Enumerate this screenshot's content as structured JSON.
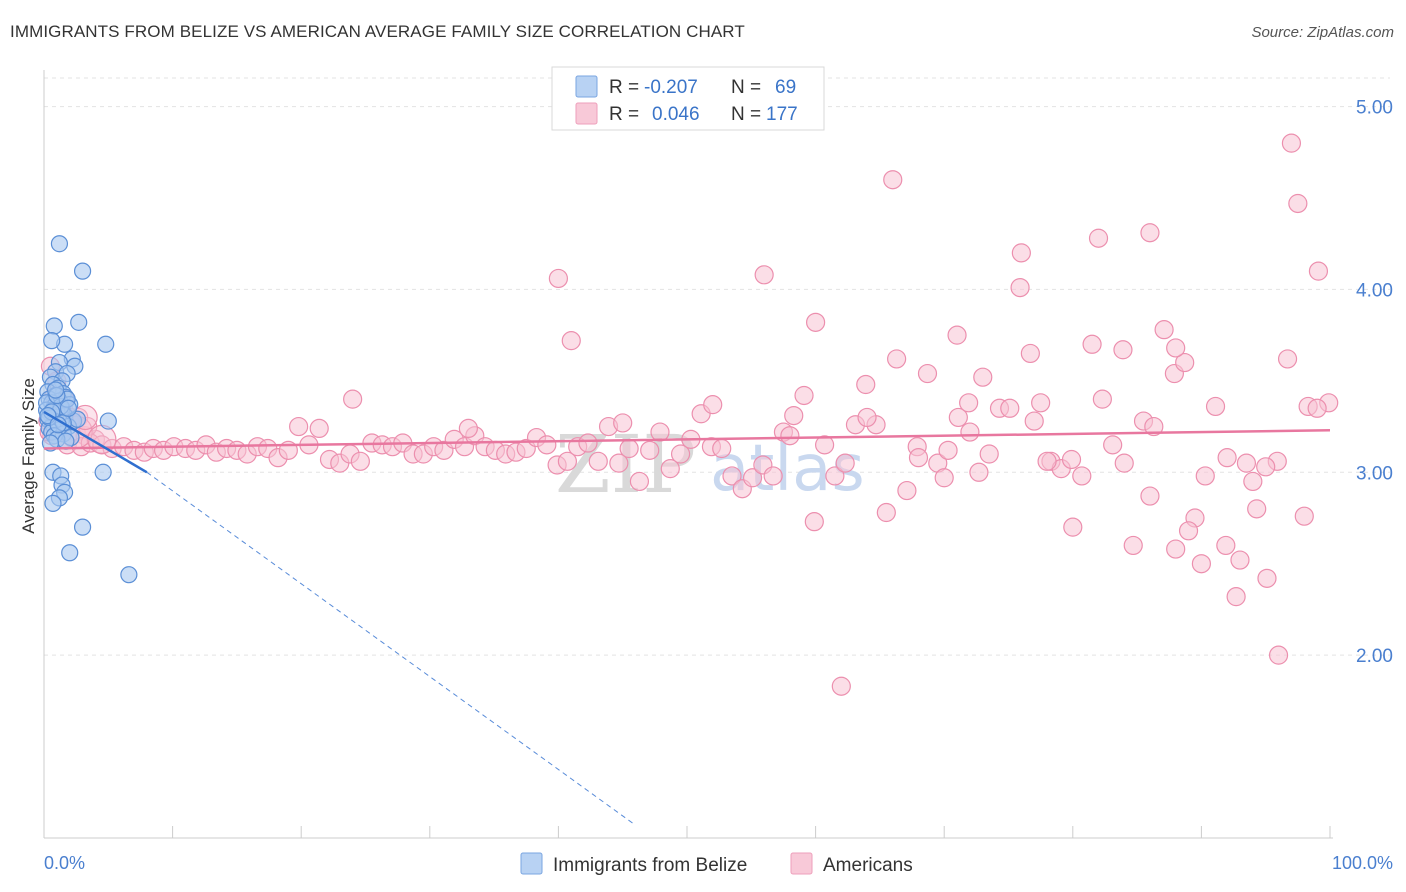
{
  "header": {
    "title": "IMMIGRANTS FROM BELIZE VS AMERICAN AVERAGE FAMILY SIZE CORRELATION CHART",
    "source": "Source: ZipAtlas.com"
  },
  "watermark": {
    "part1": "ZIP",
    "part2": "atlas"
  },
  "legend": {
    "rows": [
      {
        "r_label": "R =",
        "r_value": "-0.207",
        "n_label": "N =",
        "n_value": "69",
        "color": "#8fb5ea"
      },
      {
        "r_label": "R =",
        "r_value": "0.046",
        "n_label": "N =",
        "n_value": "177",
        "color": "#f5b0c8"
      }
    ]
  },
  "bottom_legend": [
    {
      "label": "Immigrants from Belize",
      "color": "#8fb5ea"
    },
    {
      "label": "Americans",
      "color": "#f5b0c8"
    }
  ],
  "colors": {
    "blue_fill": "#a9c8f0",
    "blue_stroke": "#5b8fd6",
    "blue_line": "#2f6fcf",
    "pink_fill": "#f7c3d4",
    "pink_stroke": "#ec8fae",
    "pink_line": "#e8779f",
    "grid": "#e3e3e3",
    "tick_label": "#4a7fcf"
  },
  "chart_data": {
    "type": "scatter",
    "title": "IMMIGRANTS FROM BELIZE VS AMERICAN AVERAGE FAMILY SIZE CORRELATION CHART",
    "xlabel": "",
    "ylabel": "Average Family Size",
    "xlim": [
      0,
      100
    ],
    "ylim": [
      1.0,
      5.2
    ],
    "x_tick_labels": [
      "0.0%",
      "100.0%"
    ],
    "y_ticks": [
      2.0,
      3.0,
      4.0,
      5.0
    ],
    "y_tick_labels": [
      "2.00",
      "3.00",
      "4.00",
      "5.00"
    ],
    "grid": true,
    "legend_position": "top-center",
    "series": [
      {
        "name": "Immigrants from Belize",
        "stats": {
          "R": -0.207,
          "N": 69
        },
        "trend": {
          "x": [
            0,
            8
          ],
          "y": [
            3.33,
            3.0
          ],
          "dashed_extension_to": [
            46,
            1.07
          ]
        },
        "points": [
          [
            1.2,
            4.25
          ],
          [
            3,
            4.1
          ],
          [
            0.8,
            3.8
          ],
          [
            2.7,
            3.82
          ],
          [
            1.6,
            3.7
          ],
          [
            4.8,
            3.7
          ],
          [
            0.6,
            3.72
          ],
          [
            2.2,
            3.62
          ],
          [
            1.2,
            3.6
          ],
          [
            2.4,
            3.58
          ],
          [
            0.9,
            3.55
          ],
          [
            1.8,
            3.54
          ],
          [
            0.5,
            3.52
          ],
          [
            1.4,
            3.5
          ],
          [
            0.7,
            3.48
          ],
          [
            1.1,
            3.46
          ],
          [
            0.3,
            3.44
          ],
          [
            1.5,
            3.43
          ],
          [
            0.9,
            3.42
          ],
          [
            1.7,
            3.41
          ],
          [
            0.4,
            3.4
          ],
          [
            1.2,
            3.39
          ],
          [
            0.6,
            3.38
          ],
          [
            2,
            3.37
          ],
          [
            0.8,
            3.36
          ],
          [
            1.4,
            3.35
          ],
          [
            0.2,
            3.34
          ],
          [
            1.0,
            3.33
          ],
          [
            0.5,
            3.32
          ],
          [
            1.6,
            3.31
          ],
          [
            0.9,
            3.3
          ],
          [
            0.3,
            3.29
          ],
          [
            2.3,
            3.28
          ],
          [
            5,
            3.28
          ],
          [
            1.3,
            3.27
          ],
          [
            0.7,
            3.26
          ],
          [
            1.9,
            3.25
          ],
          [
            0.4,
            3.24
          ],
          [
            1.1,
            3.23
          ],
          [
            0.6,
            3.22
          ],
          [
            1.5,
            3.21
          ],
          [
            0.8,
            3.2
          ],
          [
            2.1,
            3.19
          ],
          [
            1.0,
            3.18
          ],
          [
            1.7,
            3.17
          ],
          [
            0.5,
            3.16
          ],
          [
            0.7,
            3.34
          ],
          [
            1.3,
            3.36
          ],
          [
            0.4,
            3.3
          ],
          [
            1.8,
            3.4
          ],
          [
            2.6,
            3.29
          ],
          [
            0.2,
            3.38
          ],
          [
            1.0,
            3.42
          ],
          [
            0.6,
            3.33
          ],
          [
            1.5,
            3.27
          ],
          [
            0.9,
            3.45
          ],
          [
            0.7,
            3.0
          ],
          [
            1.3,
            2.98
          ],
          [
            4.6,
            3.0
          ],
          [
            1.4,
            2.93
          ],
          [
            1.6,
            2.89
          ],
          [
            1.2,
            2.86
          ],
          [
            0.7,
            2.83
          ],
          [
            3,
            2.7
          ],
          [
            2,
            2.56
          ],
          [
            6.6,
            2.44
          ],
          [
            0.3,
            3.31
          ],
          [
            1.1,
            3.26
          ],
          [
            1.9,
            3.35
          ]
        ]
      },
      {
        "name": "Americans",
        "stats": {
          "R": 0.046,
          "N": 177
        },
        "trend": {
          "x": [
            0,
            100
          ],
          "y": [
            3.13,
            3.23
          ]
        },
        "points": [
          [
            0.5,
            3.58
          ],
          [
            1,
            3.5
          ],
          [
            0.8,
            3.42
          ],
          [
            1.5,
            3.36
          ],
          [
            2.1,
            3.3
          ],
          [
            0.3,
            3.28
          ],
          [
            1.2,
            3.25
          ],
          [
            2.5,
            3.22
          ],
          [
            3.2,
            3.2
          ],
          [
            4,
            3.18
          ],
          [
            0.6,
            3.2
          ],
          [
            1.8,
            3.15
          ],
          [
            2.9,
            3.14
          ],
          [
            3.6,
            3.16
          ],
          [
            4.5,
            3.15
          ],
          [
            5.3,
            3.13
          ],
          [
            6.2,
            3.14
          ],
          [
            7,
            3.12
          ],
          [
            7.8,
            3.11
          ],
          [
            8.5,
            3.13
          ],
          [
            9.3,
            3.12
          ],
          [
            10.1,
            3.14
          ],
          [
            11,
            3.13
          ],
          [
            11.8,
            3.12
          ],
          [
            12.6,
            3.15
          ],
          [
            13.4,
            3.11
          ],
          [
            14.2,
            3.13
          ],
          [
            15,
            3.12
          ],
          [
            15.8,
            3.1
          ],
          [
            16.6,
            3.14
          ],
          [
            17.4,
            3.13
          ],
          [
            18.2,
            3.08
          ],
          [
            19,
            3.12
          ],
          [
            19.8,
            3.25
          ],
          [
            20.6,
            3.15
          ],
          [
            21.4,
            3.24
          ],
          [
            22.2,
            3.07
          ],
          [
            23,
            3.05
          ],
          [
            23.8,
            3.1
          ],
          [
            24.6,
            3.06
          ],
          [
            25.5,
            3.16
          ],
          [
            26.3,
            3.15
          ],
          [
            27.1,
            3.14
          ],
          [
            27.9,
            3.16
          ],
          [
            28.7,
            3.1
          ],
          [
            29.5,
            3.1
          ],
          [
            30.3,
            3.14
          ],
          [
            31.1,
            3.12
          ],
          [
            31.9,
            3.18
          ],
          [
            32.7,
            3.14
          ],
          [
            33.5,
            3.2
          ],
          [
            34.3,
            3.14
          ],
          [
            35.1,
            3.12
          ],
          [
            35.9,
            3.1
          ],
          [
            36.7,
            3.11
          ],
          [
            37.5,
            3.13
          ],
          [
            38.3,
            3.19
          ],
          [
            39.1,
            3.15
          ],
          [
            39.9,
            3.04
          ],
          [
            40.7,
            3.06
          ],
          [
            41.5,
            3.14
          ],
          [
            42.3,
            3.16
          ],
          [
            43.1,
            3.06
          ],
          [
            43.9,
            3.25
          ],
          [
            44.7,
            3.05
          ],
          [
            45.5,
            3.13
          ],
          [
            46.3,
            2.95
          ],
          [
            47.1,
            3.12
          ],
          [
            47.9,
            3.22
          ],
          [
            48.7,
            3.02
          ],
          [
            49.5,
            3.1
          ],
          [
            50.3,
            3.18
          ],
          [
            51.1,
            3.32
          ],
          [
            51.9,
            3.14
          ],
          [
            52.7,
            3.13
          ],
          [
            53.5,
            2.98
          ],
          [
            54.3,
            2.91
          ],
          [
            55.1,
            2.97
          ],
          [
            55.9,
            3.04
          ],
          [
            56.7,
            2.98
          ],
          [
            57.5,
            3.22
          ],
          [
            58.3,
            3.31
          ],
          [
            59.1,
            3.42
          ],
          [
            59.9,
            2.73
          ],
          [
            60.7,
            3.15
          ],
          [
            61.5,
            2.98
          ],
          [
            62.3,
            3.05
          ],
          [
            63.1,
            3.26
          ],
          [
            63.9,
            3.48
          ],
          [
            64.7,
            3.26
          ],
          [
            65.5,
            2.78
          ],
          [
            66.3,
            3.62
          ],
          [
            67.1,
            2.9
          ],
          [
            67.9,
            3.14
          ],
          [
            68.7,
            3.54
          ],
          [
            69.5,
            3.05
          ],
          [
            70.3,
            3.12
          ],
          [
            71.1,
            3.3
          ],
          [
            71.9,
            3.38
          ],
          [
            72.7,
            3.0
          ],
          [
            73.5,
            3.1
          ],
          [
            74.3,
            3.35
          ],
          [
            75.1,
            3.35
          ],
          [
            75.9,
            4.01
          ],
          [
            76.7,
            3.65
          ],
          [
            77.5,
            3.38
          ],
          [
            78.3,
            3.06
          ],
          [
            79.1,
            3.02
          ],
          [
            79.9,
            3.07
          ],
          [
            80.7,
            2.98
          ],
          [
            81.5,
            3.7
          ],
          [
            82.3,
            3.4
          ],
          [
            83.1,
            3.15
          ],
          [
            83.9,
            3.67
          ],
          [
            84.7,
            2.6
          ],
          [
            85.5,
            3.28
          ],
          [
            86.3,
            3.25
          ],
          [
            87.1,
            3.78
          ],
          [
            87.9,
            3.54
          ],
          [
            88.7,
            3.6
          ],
          [
            89.5,
            2.75
          ],
          [
            90.3,
            2.98
          ],
          [
            91.1,
            3.36
          ],
          [
            91.9,
            2.6
          ],
          [
            92.7,
            2.32
          ],
          [
            93.5,
            3.05
          ],
          [
            94.3,
            2.8
          ],
          [
            95.1,
            2.42
          ],
          [
            95.9,
            3.06
          ],
          [
            96.7,
            3.62
          ],
          [
            97.5,
            4.47
          ],
          [
            98.3,
            3.36
          ],
          [
            99.1,
            4.1
          ],
          [
            99.9,
            3.38
          ],
          [
            40,
            4.06
          ],
          [
            41,
            3.72
          ],
          [
            56,
            4.08
          ],
          [
            60,
            3.82
          ],
          [
            66,
            4.6
          ],
          [
            71,
            3.75
          ],
          [
            73,
            3.52
          ],
          [
            76,
            4.2
          ],
          [
            78,
            3.06
          ],
          [
            80,
            2.7
          ],
          [
            82,
            4.28
          ],
          [
            84,
            3.05
          ],
          [
            86,
            4.31
          ],
          [
            88,
            3.68
          ],
          [
            90,
            2.5
          ],
          [
            92,
            3.08
          ],
          [
            94,
            2.95
          ],
          [
            96,
            2.0
          ],
          [
            97,
            4.8
          ],
          [
            98,
            2.76
          ],
          [
            99,
            3.35
          ],
          [
            62,
            1.83
          ],
          [
            68,
            3.08
          ],
          [
            70,
            2.97
          ],
          [
            86,
            2.87
          ],
          [
            88,
            2.58
          ],
          [
            89,
            2.68
          ],
          [
            93,
            2.52
          ],
          [
            95,
            3.03
          ],
          [
            24,
            3.4
          ],
          [
            33,
            3.24
          ],
          [
            45,
            3.27
          ],
          [
            52,
            3.37
          ],
          [
            58,
            3.2
          ],
          [
            64,
            3.3
          ],
          [
            72,
            3.22
          ],
          [
            77,
            3.28
          ],
          [
            1,
            3.35
          ],
          [
            2,
            3.28
          ],
          [
            0.4,
            3.22
          ],
          [
            1.6,
            3.4
          ],
          [
            2.7,
            3.3
          ],
          [
            3.4,
            3.25
          ]
        ]
      }
    ]
  }
}
